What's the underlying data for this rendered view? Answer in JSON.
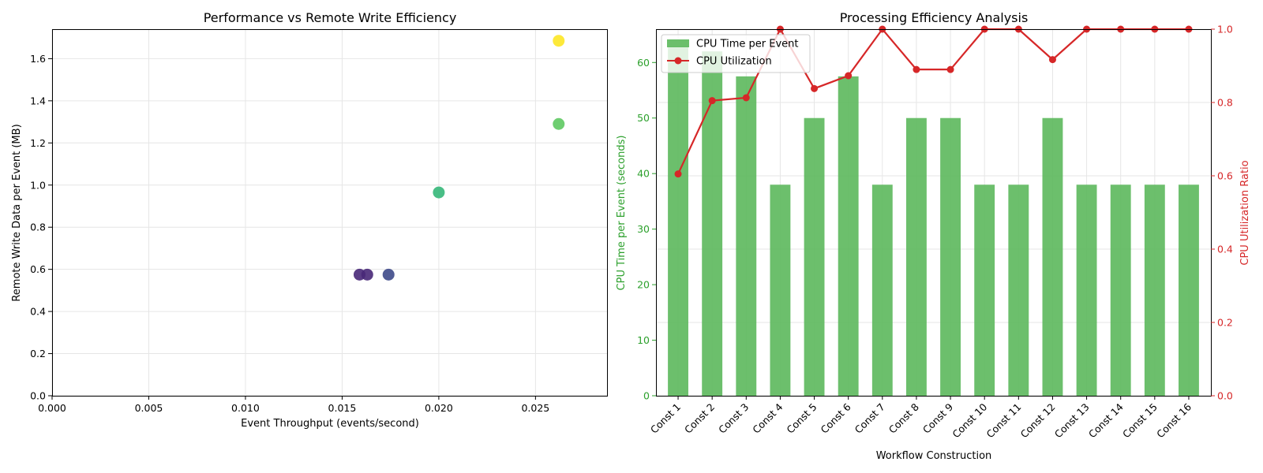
{
  "colors": {
    "bar": "#5cb85c",
    "bar_axis": "#2ca02c",
    "line": "#d62728",
    "grid": "#e6e6e6",
    "scatter_viridis": [
      "#482878",
      "#3e4a89",
      "#35b779",
      "#5ec962",
      "#fde725"
    ]
  },
  "chart_data": [
    {
      "type": "scatter",
      "title": "Performance vs Remote Write Efficiency",
      "xlabel": "Event Throughput (events/second)",
      "ylabel": "Remote Write Data per Event (MB)",
      "xlim": [
        0,
        0.0287
      ],
      "ylim": [
        0,
        1.74
      ],
      "xticks": [
        0.0,
        0.005,
        0.01,
        0.015,
        0.02,
        0.025
      ],
      "xtick_labels": [
        "0.000",
        "0.005",
        "0.010",
        "0.015",
        "0.020",
        "0.025"
      ],
      "yticks": [
        0.0,
        0.2,
        0.4,
        0.6,
        0.8,
        1.0,
        1.2,
        1.4,
        1.6
      ],
      "ytick_labels": [
        "0.0",
        "0.2",
        "0.4",
        "0.6",
        "0.8",
        "1.0",
        "1.2",
        "1.4",
        "1.6"
      ],
      "grid": true,
      "points": [
        {
          "x": 0.0159,
          "y": 0.575,
          "color": "#482878"
        },
        {
          "x": 0.0163,
          "y": 0.575,
          "color": "#482878"
        },
        {
          "x": 0.0174,
          "y": 0.575,
          "color": "#3e4a89"
        },
        {
          "x": 0.02,
          "y": 0.965,
          "color": "#35b779"
        },
        {
          "x": 0.0262,
          "y": 1.29,
          "color": "#5ec962"
        },
        {
          "x": 0.0262,
          "y": 1.685,
          "color": "#fde725"
        }
      ]
    },
    {
      "type": "bar",
      "title": "Processing Efficiency Analysis",
      "xlabel": "Workflow Construction",
      "ylabel": "CPU Time per Event (seconds)",
      "ylabel_right": "CPU Utilization Ratio",
      "categories": [
        "Const 1",
        "Const 2",
        "Const 3",
        "Const 4",
        "Const 5",
        "Const 6",
        "Const 7",
        "Const 8",
        "Const 9",
        "Const 10",
        "Const 11",
        "Const 12",
        "Const 13",
        "Const 14",
        "Const 15",
        "Const 16"
      ],
      "ylim": [
        0,
        66
      ],
      "ylim_right": [
        0,
        1.0
      ],
      "yticks": [
        0,
        10,
        20,
        30,
        40,
        50,
        60
      ],
      "ytick_labels": [
        "0",
        "10",
        "20",
        "30",
        "40",
        "50",
        "60"
      ],
      "yticks_right": [
        0.0,
        0.2,
        0.4,
        0.6,
        0.8,
        1.0
      ],
      "ytick_labels_right": [
        "0.0",
        "0.2",
        "0.4",
        "0.6",
        "0.8",
        "1.0"
      ],
      "grid": true,
      "legend_position": "top-left",
      "series": [
        {
          "name": "CPU Time per Event",
          "type": "bar",
          "axis": "left",
          "values": [
            63,
            62,
            57.5,
            38,
            50,
            57.5,
            38,
            50,
            50,
            38,
            38,
            50,
            38,
            38,
            38,
            38
          ]
        },
        {
          "name": "CPU Utilization",
          "type": "line",
          "axis": "right",
          "values": [
            0.605,
            0.805,
            0.813,
            1.0,
            0.838,
            0.873,
            1.0,
            0.89,
            0.89,
            1.0,
            1.0,
            0.917,
            1.0,
            1.0,
            1.0,
            1.0
          ]
        }
      ]
    }
  ]
}
